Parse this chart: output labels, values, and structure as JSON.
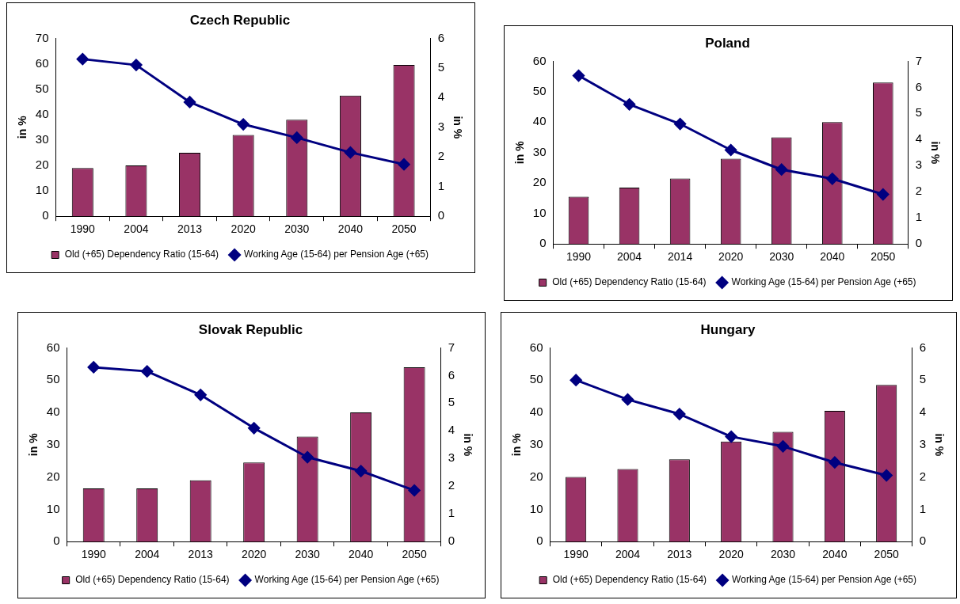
{
  "chart_data": [
    {
      "type": "bar",
      "title": "Czech Republic",
      "categories": [
        "1990",
        "2004",
        "2013",
        "2020",
        "2030",
        "2040",
        "2050"
      ],
      "ylabel": "in %",
      "y2label": "in %",
      "ylim": [
        0,
        70
      ],
      "yticks": [
        0,
        10,
        20,
        30,
        40,
        50,
        60,
        70
      ],
      "y2lim": [
        0,
        6
      ],
      "y2ticks": [
        0,
        1,
        2,
        3,
        4,
        5,
        6
      ],
      "grid": false,
      "legend": "bottom",
      "marker": "diamond",
      "line_style": "solid",
      "series": [
        {
          "name": "Old (+65) Dependency Ratio (15-64)",
          "color": "#993366",
          "values": [
            19,
            20,
            25,
            32,
            38,
            47.5,
            59.5
          ]
        },
        {
          "name": "Working Age (15-64) per Pension Age (+65)",
          "type": "line",
          "axis": "y2",
          "color": "#000080",
          "values": [
            5.3,
            5.1,
            3.85,
            3.1,
            2.65,
            2.15,
            1.75
          ]
        }
      ]
    },
    {
      "type": "bar",
      "title": "Poland",
      "categories": [
        "1990",
        "2004",
        "2014",
        "2020",
        "2030",
        "2040",
        "2050"
      ],
      "ylabel": "in %",
      "y2label": "in %",
      "ylim": [
        0,
        60
      ],
      "yticks": [
        0,
        10,
        20,
        30,
        40,
        50,
        60
      ],
      "y2lim": [
        0,
        7
      ],
      "y2ticks": [
        0,
        1,
        2,
        3,
        4,
        5,
        6,
        7
      ],
      "grid": false,
      "legend": "bottom",
      "marker": "diamond",
      "line_style": "solid",
      "series": [
        {
          "name": "Old (+65) Dependency Ratio (15-64)",
          "color": "#993366",
          "values": [
            15.5,
            18.5,
            21.5,
            28,
            35,
            40,
            53
          ]
        },
        {
          "name": "Working Age (15-64) per Pension Age (+65)",
          "type": "line",
          "axis": "y2",
          "color": "#000080",
          "values": [
            6.45,
            5.35,
            4.6,
            3.6,
            2.85,
            2.5,
            1.9
          ]
        }
      ]
    },
    {
      "type": "bar",
      "title": "Slovak Republic",
      "categories": [
        "1990",
        "2004",
        "2013",
        "2020",
        "2030",
        "2040",
        "2050"
      ],
      "ylabel": "in %",
      "y2label": "in %",
      "ylim": [
        0,
        60
      ],
      "yticks": [
        0,
        10,
        20,
        30,
        40,
        50,
        60
      ],
      "y2lim": [
        0,
        7
      ],
      "y2ticks": [
        0,
        1,
        2,
        3,
        4,
        5,
        6,
        7
      ],
      "grid": false,
      "legend": "bottom",
      "marker": "diamond",
      "line_style": "solid",
      "series": [
        {
          "name": "Old (+65) Dependency Ratio (15-64)",
          "color": "#993366",
          "values": [
            16.5,
            16.5,
            19,
            24.5,
            32.5,
            40,
            54
          ]
        },
        {
          "name": "Working Age (15-64) per Pension Age (+65)",
          "type": "line",
          "axis": "y2",
          "color": "#000080",
          "values": [
            6.3,
            6.15,
            5.3,
            4.1,
            3.05,
            2.55,
            1.85
          ]
        }
      ]
    },
    {
      "type": "bar",
      "title": "Hungary",
      "categories": [
        "1990",
        "2004",
        "2013",
        "2020",
        "2030",
        "2040",
        "2050"
      ],
      "ylabel": "in %",
      "y2label": "in %",
      "ylim": [
        0,
        60
      ],
      "yticks": [
        0,
        10,
        20,
        30,
        40,
        50,
        60
      ],
      "y2lim": [
        0,
        6
      ],
      "y2ticks": [
        0,
        1,
        2,
        3,
        4,
        5,
        6
      ],
      "grid": false,
      "legend": "bottom",
      "marker": "diamond",
      "line_style": "solid",
      "series": [
        {
          "name": "Old (+65) Dependency Ratio (15-64)",
          "color": "#993366",
          "values": [
            20,
            22.5,
            25.5,
            31,
            34,
            40.5,
            48.5
          ]
        },
        {
          "name": "Working Age (15-64) per Pension Age (+65)",
          "type": "line",
          "axis": "y2",
          "color": "#000080",
          "values": [
            5.0,
            4.4,
            3.95,
            3.25,
            2.95,
            2.45,
            2.05
          ]
        }
      ]
    }
  ]
}
